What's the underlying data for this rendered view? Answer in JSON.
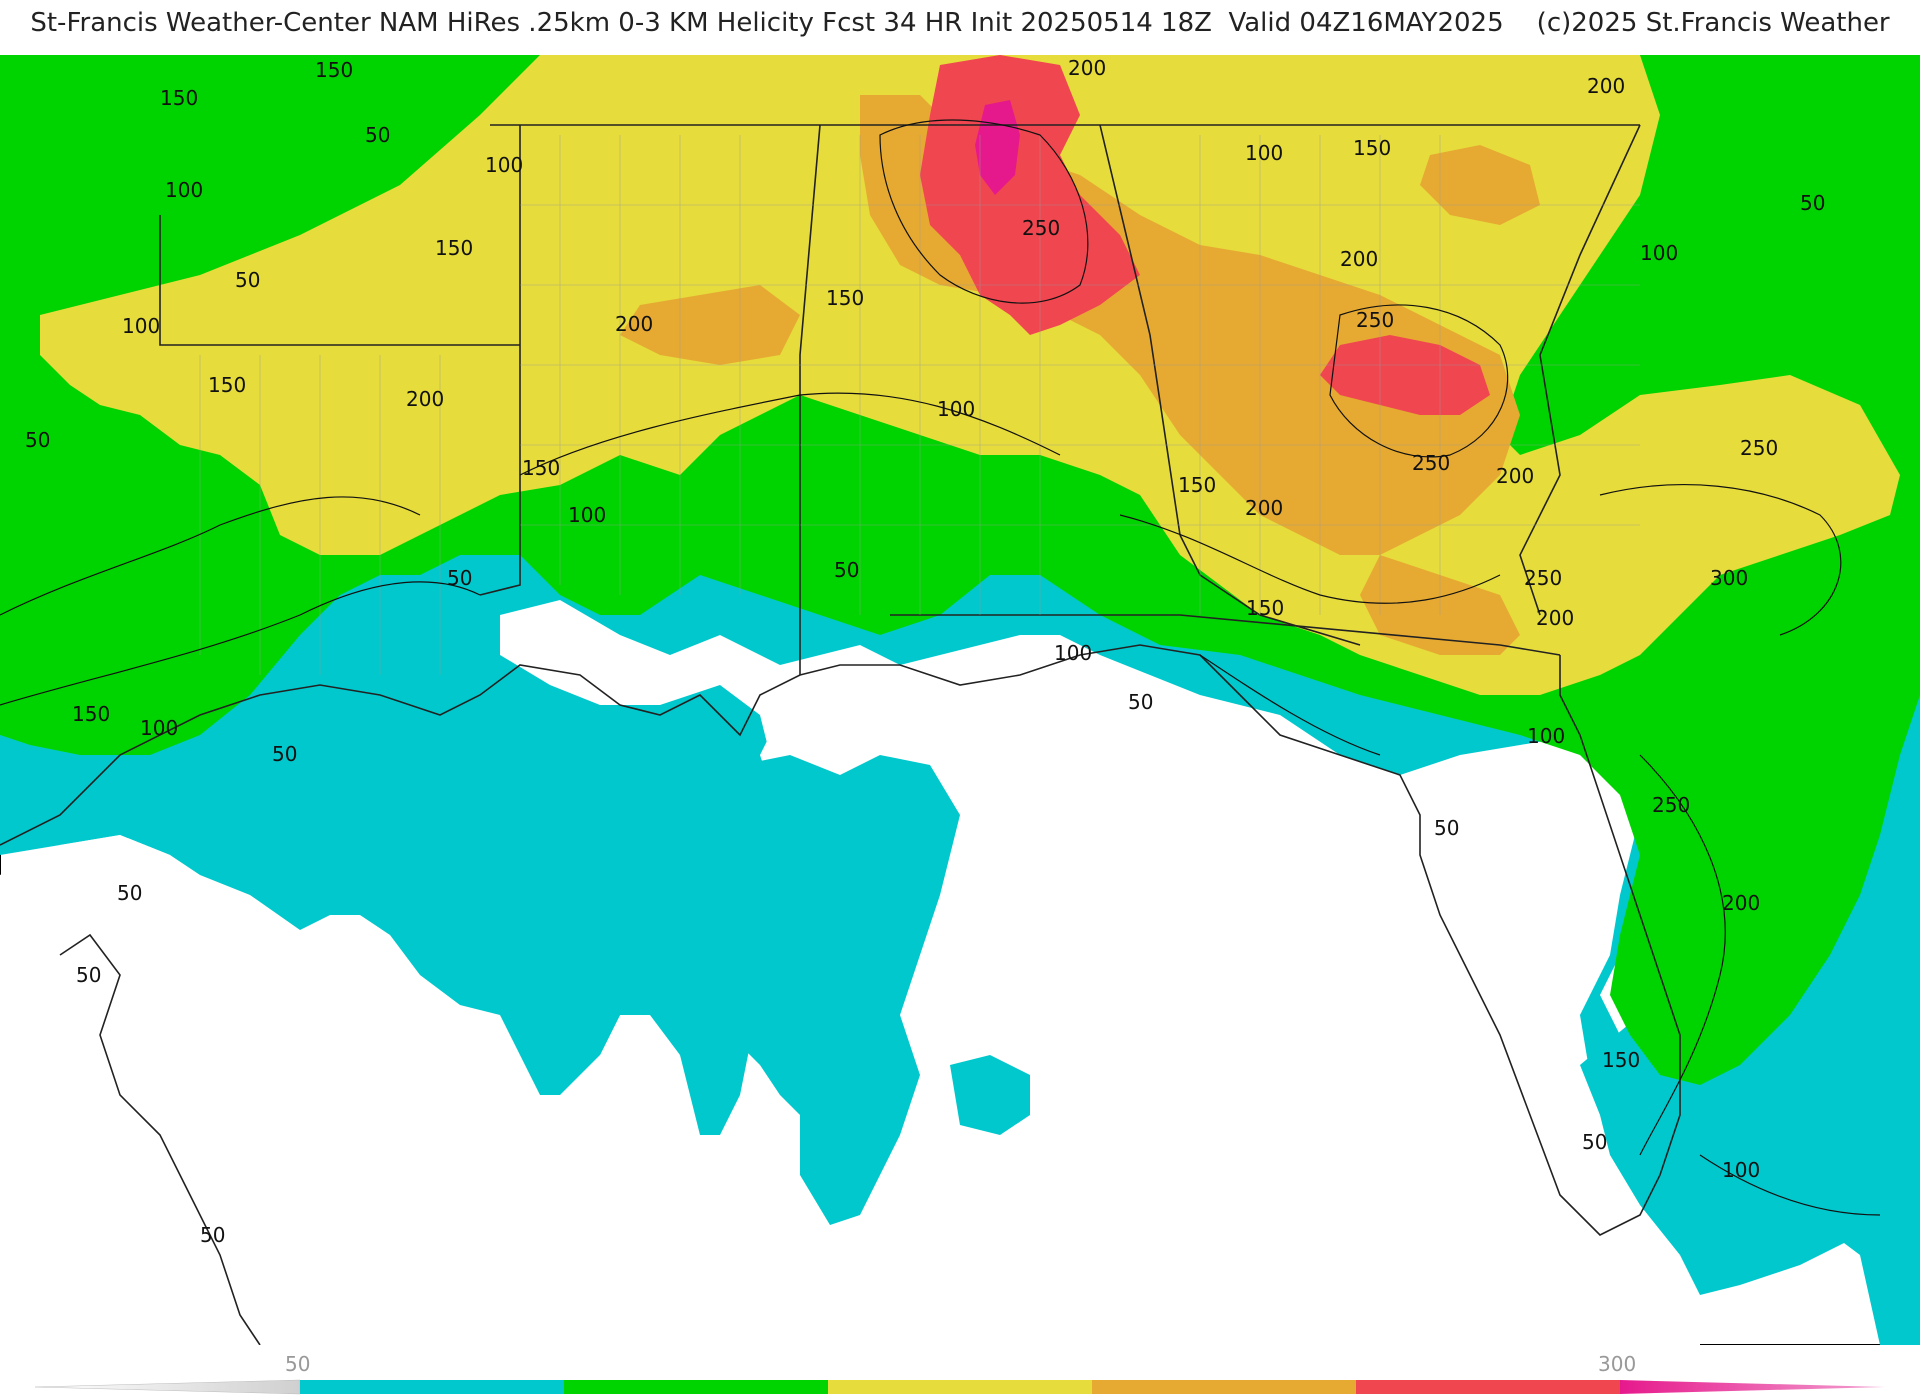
{
  "title": "St-Francis Weather-Center NAM HiRes .25km 0-3 KM Helicity Fcst 34 HR Init 20250514 18Z  Valid 04Z16MAY2025    (c)2025 St.Francis Weather",
  "contour_labels": [
    "50",
    "100",
    "150",
    "200",
    "250",
    "300"
  ],
  "colorbar": {
    "ticks": [
      "50",
      "300"
    ],
    "colors": {
      "50": "#00c8cc",
      "100": "#00d400",
      "150": "#e6dc3c",
      "200": "#e6aa32",
      "250": "#f04650",
      "300": "#e6198c"
    }
  },
  "colors": {
    "land_lines": "#222222",
    "county_lines": "#9a9a9a",
    "background": "#ffffff"
  }
}
